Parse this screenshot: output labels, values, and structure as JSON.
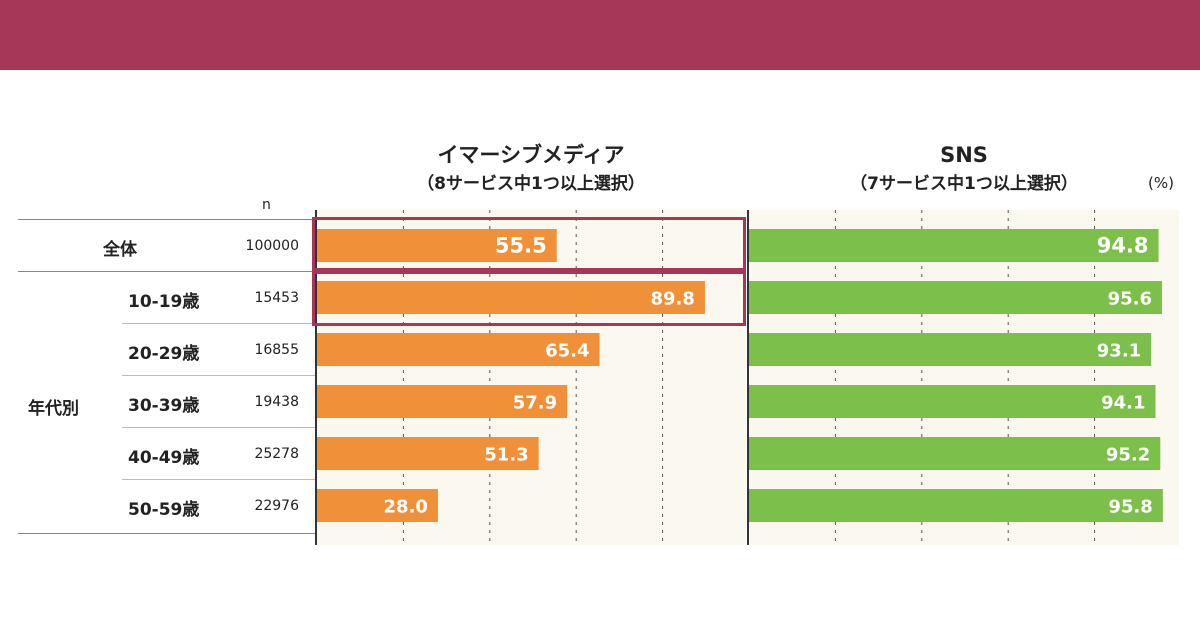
{
  "header_color": "#a63758",
  "unit_label": "(%)",
  "n_header": "n",
  "group_label": "年代別",
  "chart_data": [
    {
      "type": "bar",
      "title": "イマーシブメディア",
      "subtitle": "（8サービス中1つ以上選択）",
      "color": "#f0913a",
      "xlim": [
        0,
        100
      ],
      "categories": [
        "全体",
        "10-19歳",
        "20-29歳",
        "30-39歳",
        "40-49歳",
        "50-59歳"
      ],
      "values": [
        55.5,
        89.8,
        65.4,
        57.9,
        51.3,
        28.0
      ],
      "value_labels": [
        "55.5",
        "89.8",
        "65.4",
        "57.9",
        "51.3",
        "28.0"
      ]
    },
    {
      "type": "bar",
      "title": "SNS",
      "subtitle": "（7サービス中1つ以上選択）",
      "color": "#7cbf4a",
      "xlim": [
        0,
        100
      ],
      "categories": [
        "全体",
        "10-19歳",
        "20-29歳",
        "30-39歳",
        "40-49歳",
        "50-59歳"
      ],
      "values": [
        94.8,
        95.6,
        93.1,
        94.1,
        95.2,
        95.8
      ],
      "value_labels": [
        "94.8",
        "95.6",
        "93.1",
        "94.1",
        "95.2",
        "95.8"
      ]
    }
  ],
  "rows": [
    {
      "label": "全体",
      "n": "100000"
    },
    {
      "label": "10-19歳",
      "n": "15453"
    },
    {
      "label": "20-29歳",
      "n": "16855"
    },
    {
      "label": "30-39歳",
      "n": "19438"
    },
    {
      "label": "40-49歳",
      "n": "25278"
    },
    {
      "label": "50-59歳",
      "n": "22976"
    }
  ]
}
